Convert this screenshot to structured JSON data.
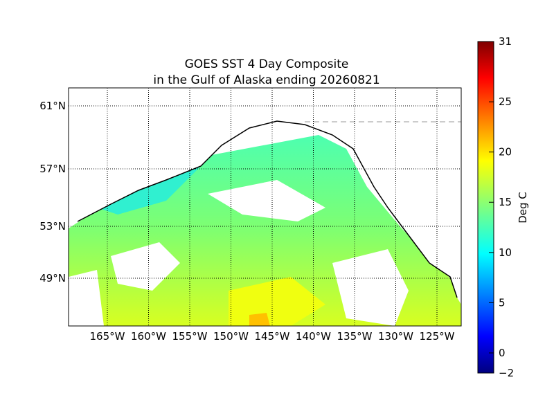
{
  "title": [
    "GOES SST 4 Day Composite",
    "in the Gulf of Alaska ending 20260821"
  ],
  "map": {
    "lat_ticks": [
      {
        "value": 61,
        "label": "61°N"
      },
      {
        "value": 57,
        "label": "57°N"
      },
      {
        "value": 53,
        "label": "53°N"
      },
      {
        "value": 49,
        "label": "49°N"
      }
    ],
    "lon_ticks": [
      {
        "value": -165,
        "label": "165°W"
      },
      {
        "value": -160,
        "label": "160°W"
      },
      {
        "value": -155,
        "label": "155°W"
      },
      {
        "value": -150,
        "label": "150°W"
      },
      {
        "value": -145,
        "label": "145°W"
      },
      {
        "value": -140,
        "label": "140°W"
      },
      {
        "value": -135,
        "label": "135°W"
      },
      {
        "value": -130,
        "label": "130°W"
      },
      {
        "value": -125,
        "label": "125°W"
      }
    ]
  },
  "colorbar": {
    "label": "Deg C",
    "lim": [
      -2,
      31
    ],
    "colormap": "jet",
    "ticks": [
      {
        "value": -2,
        "label": "−2"
      },
      0,
      5,
      10,
      15,
      20,
      25,
      31
    ]
  }
}
